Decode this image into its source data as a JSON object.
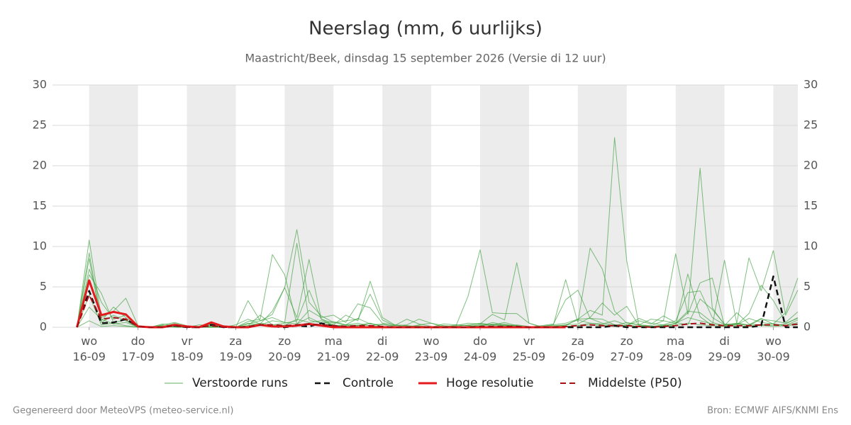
{
  "chart_data": {
    "type": "line",
    "title": "Neerslag (mm, 6 uurlijks)",
    "subtitle": "Maastricht/Beek, dinsdag 15 september 2026 (Versie di 12 uur)",
    "footer_left": "Gegenereerd door MeteoVPS (meteo-service.nl)",
    "footer_right": "Bron: ECMWF AIFS/KNMI Ens",
    "x": [
      -0.25,
      0,
      0.25,
      0.5,
      0.75,
      1,
      1.25,
      1.5,
      1.75,
      2,
      2.25,
      2.5,
      2.75,
      3,
      3.25,
      3.5,
      3.75,
      4,
      4.25,
      4.5,
      4.75,
      5,
      5.25,
      5.5,
      5.75,
      6,
      6.25,
      6.5,
      6.75,
      7,
      7.25,
      7.5,
      7.75,
      8,
      8.25,
      8.5,
      8.75,
      9,
      9.25,
      9.5,
      9.75,
      10,
      10.25,
      10.5,
      10.75,
      11,
      11.25,
      11.5,
      11.75,
      12,
      12.25,
      12.5,
      12.75,
      13,
      13.25,
      13.5,
      13.75,
      14,
      14.25,
      14.5
    ],
    "xlim": [
      -0.75,
      14.5
    ],
    "xticks": [
      {
        "value": 0,
        "label": "wo 16-09"
      },
      {
        "value": 1,
        "label": "do 17-09"
      },
      {
        "value": 2,
        "label": "vr 18-09"
      },
      {
        "value": 3,
        "label": "za 19-09"
      },
      {
        "value": 4,
        "label": "zo 20-09"
      },
      {
        "value": 5,
        "label": "ma 21-09"
      },
      {
        "value": 6,
        "label": "di 22-09"
      },
      {
        "value": 7,
        "label": "wo 23-09"
      },
      {
        "value": 8,
        "label": "do 24-09"
      },
      {
        "value": 9,
        "label": "vr 25-09"
      },
      {
        "value": 10,
        "label": "za 26-09"
      },
      {
        "value": 11,
        "label": "zo 27-09"
      },
      {
        "value": 12,
        "label": "ma 28-09"
      },
      {
        "value": 13,
        "label": "di 29-09"
      },
      {
        "value": 14,
        "label": "wo 30-09"
      }
    ],
    "ylim": [
      0,
      30
    ],
    "yticks": [
      0,
      5,
      10,
      15,
      20,
      25,
      30
    ],
    "grid": true,
    "alternate_day_shading": true,
    "series": [
      {
        "name": "Verstoorde runs",
        "color": "#3a9e3a",
        "width": 1,
        "dash": false,
        "runs": [
          [
            0,
            10.8,
            1.2,
            2.0,
            3.6,
            0.2,
            0,
            0,
            0.3,
            0.1,
            0,
            0.4,
            0,
            0,
            0.2,
            0.5,
            0.3,
            0.2,
            1.0,
            0.6,
            0.8,
            0.3,
            0.1,
            0.2,
            0.5,
            0.1,
            0,
            0.2,
            0,
            0,
            0,
            0.2,
            0.5,
            0.4,
            0.3,
            0.6,
            0.2,
            0,
            0.1,
            0.3,
            0.5,
            1.0,
            2.1,
            1.5,
            23.5,
            8.2,
            0.3,
            0.1,
            0.2,
            0.5,
            1.2,
            0.8,
            0.4,
            0.2,
            0.3,
            1.1,
            0.6,
            0.4,
            1.8,
            6.1
          ],
          [
            0,
            8.5,
            0.6,
            1.5,
            0.8,
            0,
            0,
            0.2,
            0,
            0,
            0.1,
            0,
            0,
            0.3,
            1.0,
            0.4,
            2.0,
            4.9,
            12.1,
            3.1,
            1.4,
            0.6,
            0.3,
            0.2,
            0.5,
            0.1,
            0,
            0,
            0.2,
            0,
            0,
            0,
            0.1,
            0.3,
            0.2,
            0.4,
            0.1,
            0,
            0,
            0.2,
            0.3,
            0.9,
            0.5,
            0.4,
            0.8,
            0.3,
            0.1,
            0,
            0.2,
            0.4,
            1.8,
            19.7,
            2.4,
            0.3,
            0.5,
            0.2,
            0.3,
            0.4,
            0.2,
            0.6
          ],
          [
            0,
            7.2,
            3.1,
            1.0,
            1.5,
            0.1,
            0,
            0.3,
            0.6,
            0.2,
            0,
            0.1,
            0,
            0,
            0.7,
            1.0,
            9.0,
            6.5,
            0.4,
            1.2,
            0.5,
            0.3,
            1.5,
            0.8,
            5.7,
            1.2,
            0.3,
            0,
            0.1,
            0,
            0.2,
            0.1,
            3.8,
            9.6,
            1.8,
            1.7,
            1.7,
            0.5,
            0,
            0.1,
            0.3,
            0.4,
            1.2,
            3.0,
            1.5,
            2.6,
            0.2,
            0.1,
            0.3,
            0.8,
            4.3,
            4.5,
            1.2,
            0.3,
            0.4,
            0.2,
            1.0,
            0.8,
            0.5,
            1.1
          ],
          [
            0,
            9.2,
            0.8,
            2.5,
            1.2,
            0,
            0,
            0.1,
            0.5,
            0.1,
            0,
            0,
            0.2,
            0,
            0.4,
            0.8,
            1.6,
            4.9,
            1.2,
            8.4,
            1.0,
            0.2,
            0.3,
            0.5,
            0.2,
            0.4,
            0.1,
            0,
            0.3,
            0.5,
            0.2,
            0.1,
            0.3,
            0.4,
            1.6,
            0.9,
            8.0,
            0.5,
            0.1,
            0.3,
            5.9,
            0.6,
            9.8,
            7.2,
            2.0,
            0.5,
            0.3,
            1.0,
            0.8,
            9.1,
            1.6,
            5.5,
            6.1,
            0.2,
            0.5,
            0.3,
            1.1,
            0.4,
            0.2,
            0.9
          ],
          [
            0,
            6.5,
            4.2,
            0.6,
            0.9,
            0,
            0,
            0.2,
            0.1,
            0,
            0.3,
            0.2,
            0,
            0,
            3.3,
            0.8,
            1.2,
            0.6,
            10.4,
            0.9,
            0.5,
            0.7,
            0.3,
            1.1,
            0.4,
            0.3,
            0.2,
            1.0,
            0.4,
            0.1,
            0,
            0.3,
            0.2,
            0.5,
            0.3,
            0.2,
            0.1,
            0,
            0.2,
            0.4,
            3.4,
            4.6,
            1.1,
            1.0,
            0.3,
            0.2,
            1.1,
            0.5,
            0.3,
            0.2,
            6.6,
            1.3,
            0.2,
            8.3,
            0.5,
            8.6,
            4.5,
            9.5,
            1.5,
            4.6
          ],
          [
            0,
            4.0,
            0.3,
            0.5,
            0.2,
            0,
            0,
            0,
            0.2,
            0,
            0,
            0.1,
            0,
            0,
            0.5,
            0.3,
            0.8,
            0.6,
            0.4,
            2.1,
            1.2,
            1.5,
            0.6,
            2.9,
            2.4,
            0.5,
            0.3,
            0.2,
            0.1,
            0,
            0.4,
            0.3,
            0.2,
            0.1,
            0.6,
            0.3,
            0.2,
            0,
            0,
            0.1,
            0.2,
            1.0,
            1.1,
            0.5,
            0.3,
            0.2,
            0.8,
            0.4,
            1.4,
            0.6,
            0.3,
            3.5,
            2.2,
            0.4,
            0.3,
            1.7,
            5.2,
            3.3,
            0.6,
            1.9
          ],
          [
            0,
            2.5,
            1.0,
            0.4,
            0.6,
            0,
            0,
            0.4,
            0.2,
            0.1,
            0,
            0,
            0.1,
            0,
            0.2,
            1.5,
            0.3,
            0.5,
            0.8,
            4.6,
            1.0,
            0.5,
            0.8,
            1.0,
            4.1,
            0.9,
            0.2,
            0.3,
            1.0,
            0.5,
            0,
            0,
            0.1,
            0.2,
            0.4,
            0.2,
            0.3,
            0.1,
            0,
            0,
            0.1,
            0.2,
            0.5,
            0.3,
            0.2,
            0.6,
            0.3,
            0.2,
            0.8,
            0.5,
            2.0,
            1.8,
            0.6,
            0.2,
            1.8,
            0.4,
            0.3,
            0.2,
            0.4,
            1.2
          ],
          [
            0,
            0.8,
            0.1,
            0.2,
            0.1,
            0,
            0,
            0.1,
            0,
            0,
            0,
            0,
            0,
            0,
            0.1,
            0.2,
            0.1,
            0.3,
            0.2,
            0.5,
            0.2,
            0.1,
            0.2,
            0.3,
            0.2,
            0.1,
            0,
            0.1,
            0,
            0,
            0,
            0,
            0,
            0.1,
            0.1,
            0.2,
            0.1,
            0,
            0,
            0,
            0.1,
            0.2,
            0.3,
            0.2,
            0.1,
            0.2,
            0.1,
            0,
            0.1,
            0.2,
            0.5,
            0.3,
            0.2,
            0.1,
            0.2,
            0.1,
            0.2,
            0.1,
            0.2,
            0.3
          ]
        ]
      },
      {
        "name": "Controle",
        "color": "#111111",
        "width": 2.5,
        "dash": true,
        "values": [
          0,
          4.5,
          0.5,
          0.6,
          1.0,
          0.1,
          0,
          0,
          0.2,
          0,
          0,
          0.3,
          0,
          0,
          0,
          0.3,
          0.1,
          0,
          0.2,
          0.1,
          0.5,
          0.1,
          0,
          0,
          0,
          0,
          0,
          0,
          0,
          0,
          0,
          0,
          0,
          0,
          0,
          0,
          0,
          0,
          0,
          0,
          0,
          0,
          0,
          0,
          0.2,
          0,
          0,
          0,
          0,
          0,
          0,
          0,
          0,
          0,
          0,
          0,
          0.2,
          6.3,
          0,
          0
        ]
      },
      {
        "name": "Hoge resolutie",
        "color": "#e41a1c",
        "width": 3,
        "dash": false,
        "values": [
          0,
          5.8,
          1.5,
          1.9,
          1.6,
          0.1,
          0,
          0,
          0.3,
          0.1,
          0,
          0.6,
          0.1,
          0,
          0,
          0.3,
          0.1,
          0.1,
          0.2,
          0.4,
          0.2,
          0,
          0,
          0,
          0,
          0,
          0,
          0,
          0,
          0,
          0,
          0,
          0,
          0,
          0,
          0,
          0,
          0,
          0,
          0,
          0,
          null,
          null,
          null,
          null,
          null,
          null,
          null,
          null,
          null,
          null,
          null,
          null,
          null,
          null,
          null,
          null,
          null,
          null,
          null
        ]
      },
      {
        "name": "Middelste (P50)",
        "color": "#a50f15",
        "width": 2,
        "dash": true,
        "values": [
          0,
          4.0,
          1.0,
          1.2,
          1.0,
          0.1,
          0,
          0,
          0.2,
          0,
          0,
          0.2,
          0,
          0,
          0.1,
          0.3,
          0.3,
          0.2,
          0.3,
          0.4,
          0.3,
          0.2,
          0.1,
          0.2,
          0.2,
          0.1,
          0,
          0,
          0,
          0,
          0,
          0,
          0,
          0.1,
          0.1,
          0.1,
          0.1,
          0,
          0,
          0,
          0.1,
          0.2,
          0.3,
          0.2,
          0.2,
          0.2,
          0.1,
          0,
          0.1,
          0.2,
          0.4,
          0.5,
          0.3,
          0.2,
          0.2,
          0.2,
          0.3,
          0.3,
          0.2,
          0.4
        ]
      }
    ]
  }
}
